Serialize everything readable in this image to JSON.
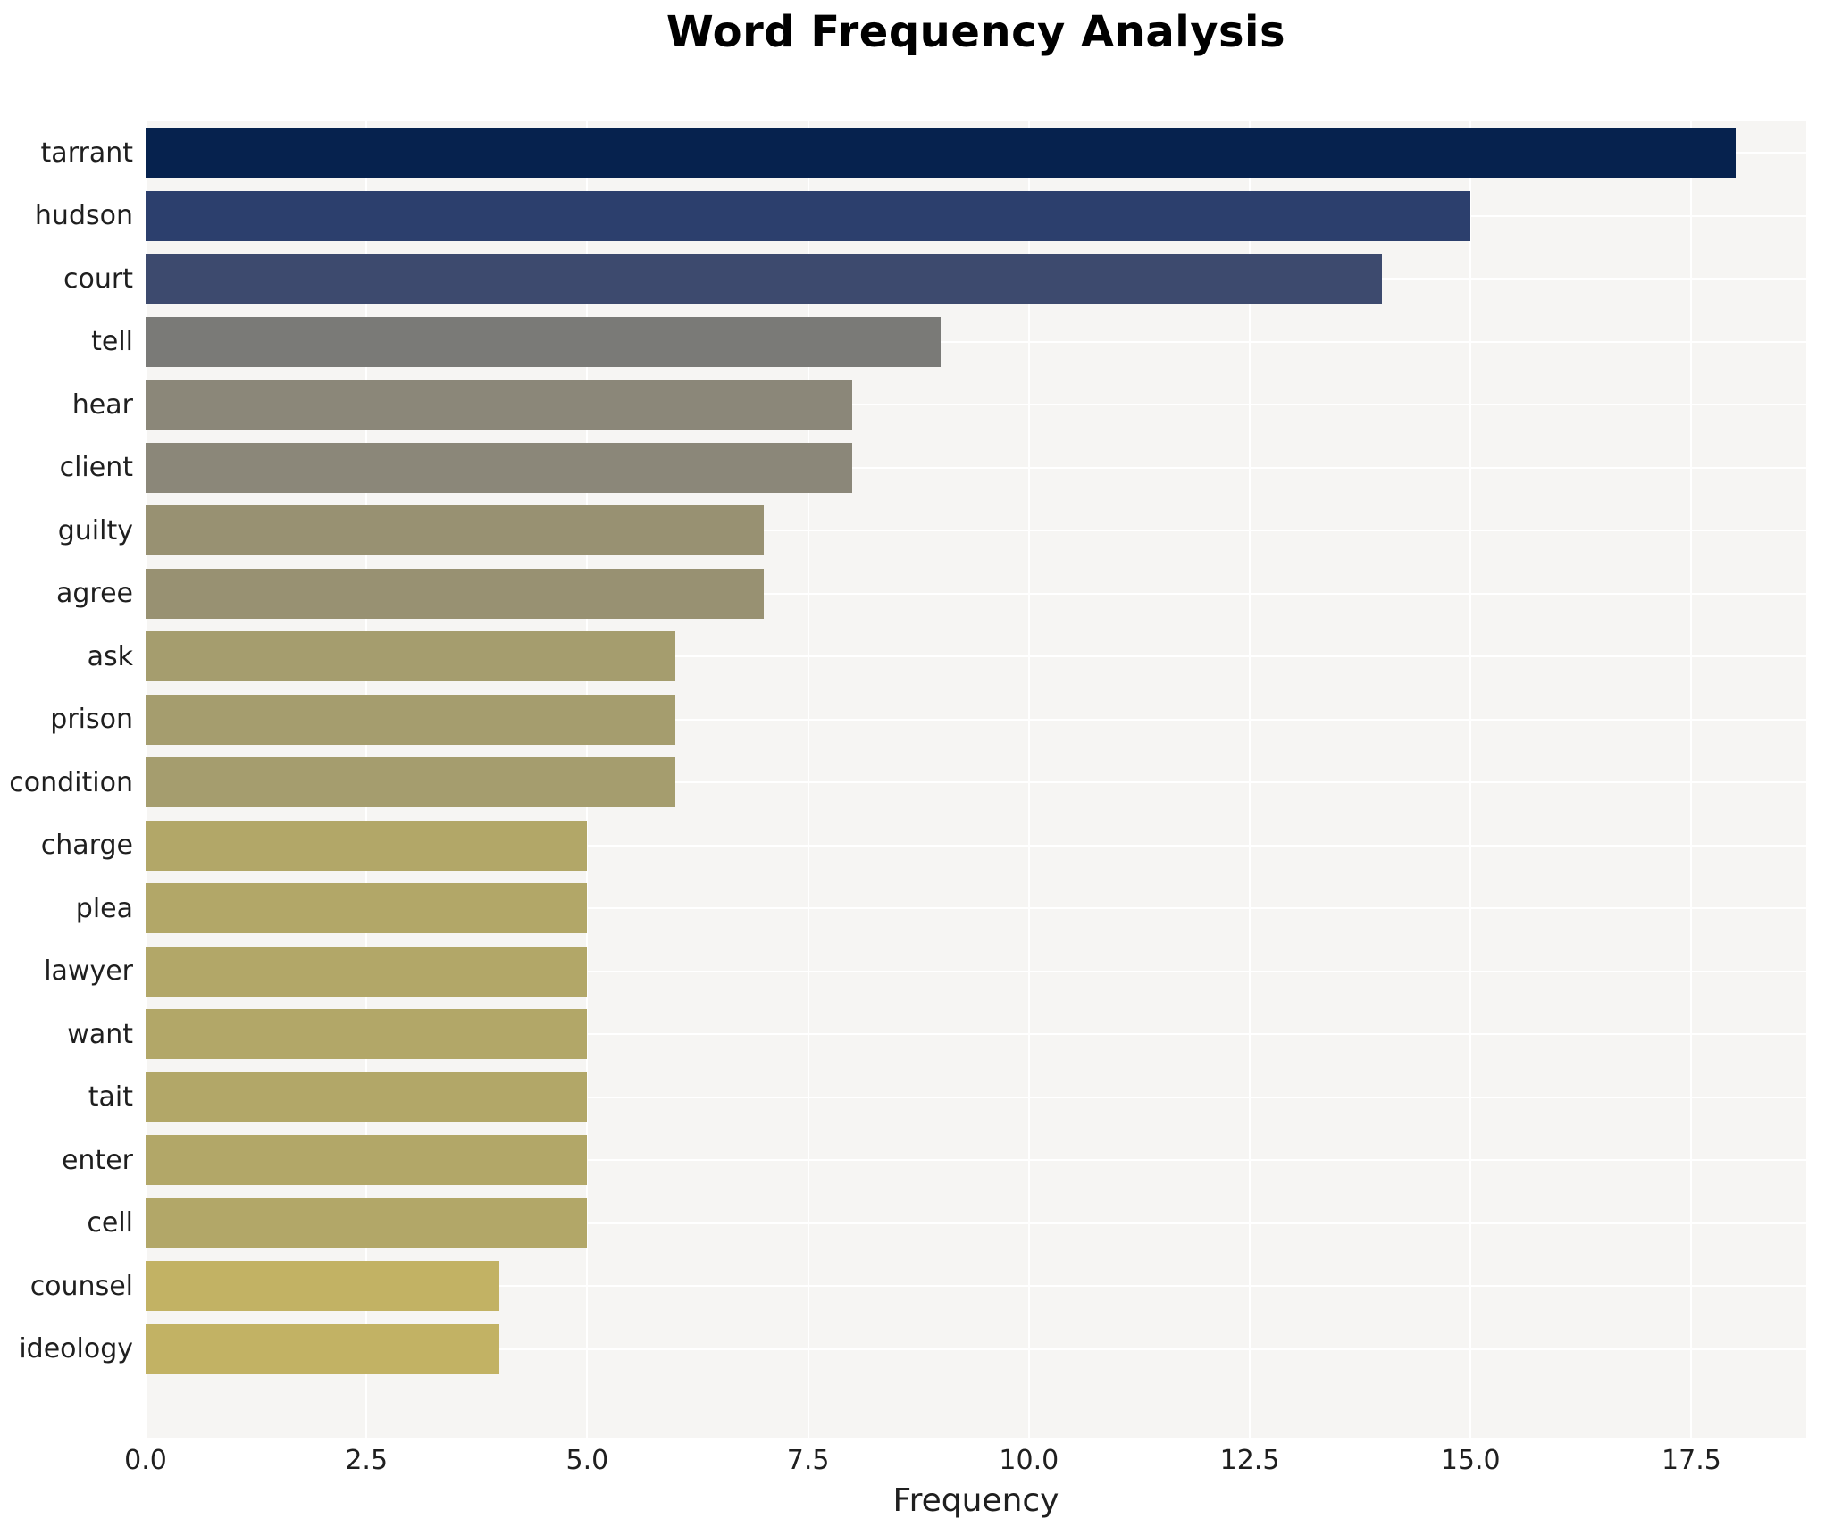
{
  "title": "Word Frequency Analysis",
  "chart_data": {
    "type": "bar",
    "orientation": "horizontal",
    "title": "Word Frequency Analysis",
    "xlabel": "Frequency",
    "ylabel": "",
    "categories": [
      "tarrant",
      "hudson",
      "court",
      "tell",
      "hear",
      "client",
      "guilty",
      "agree",
      "ask",
      "prison",
      "condition",
      "charge",
      "plea",
      "lawyer",
      "want",
      "tait",
      "enter",
      "cell",
      "counsel",
      "ideology"
    ],
    "values": [
      18,
      15,
      14,
      9,
      8,
      8,
      7,
      7,
      6,
      6,
      6,
      5,
      5,
      5,
      5,
      5,
      5,
      5,
      4,
      4
    ],
    "bar_colors": [
      "#06224e",
      "#2c3f6d",
      "#3d4a6e",
      "#7a7a77",
      "#8b8779",
      "#8b8779",
      "#989172",
      "#989172",
      "#a59d6e",
      "#a59d6e",
      "#a59d6e",
      "#b2a768",
      "#b2a768",
      "#b2a768",
      "#b2a768",
      "#b2a768",
      "#b2a768",
      "#b2a768",
      "#c2b264",
      "#c2b264"
    ],
    "xlim": [
      0,
      18.8
    ],
    "xticks": [
      0,
      2.5,
      5,
      7.5,
      10,
      12.5,
      15,
      17.5
    ],
    "xtick_labels": [
      "0.0",
      "2.5",
      "5.0",
      "7.5",
      "10.0",
      "12.5",
      "15.0",
      "17.5"
    ],
    "grid": true,
    "gridline_color": "#ffffff",
    "plot_background": "#f6f5f3",
    "figure_background": "#ffffff",
    "text_color": "#1f1f1f",
    "colormap": "cividis",
    "legend": null,
    "bar_height_fraction": 0.8
  }
}
